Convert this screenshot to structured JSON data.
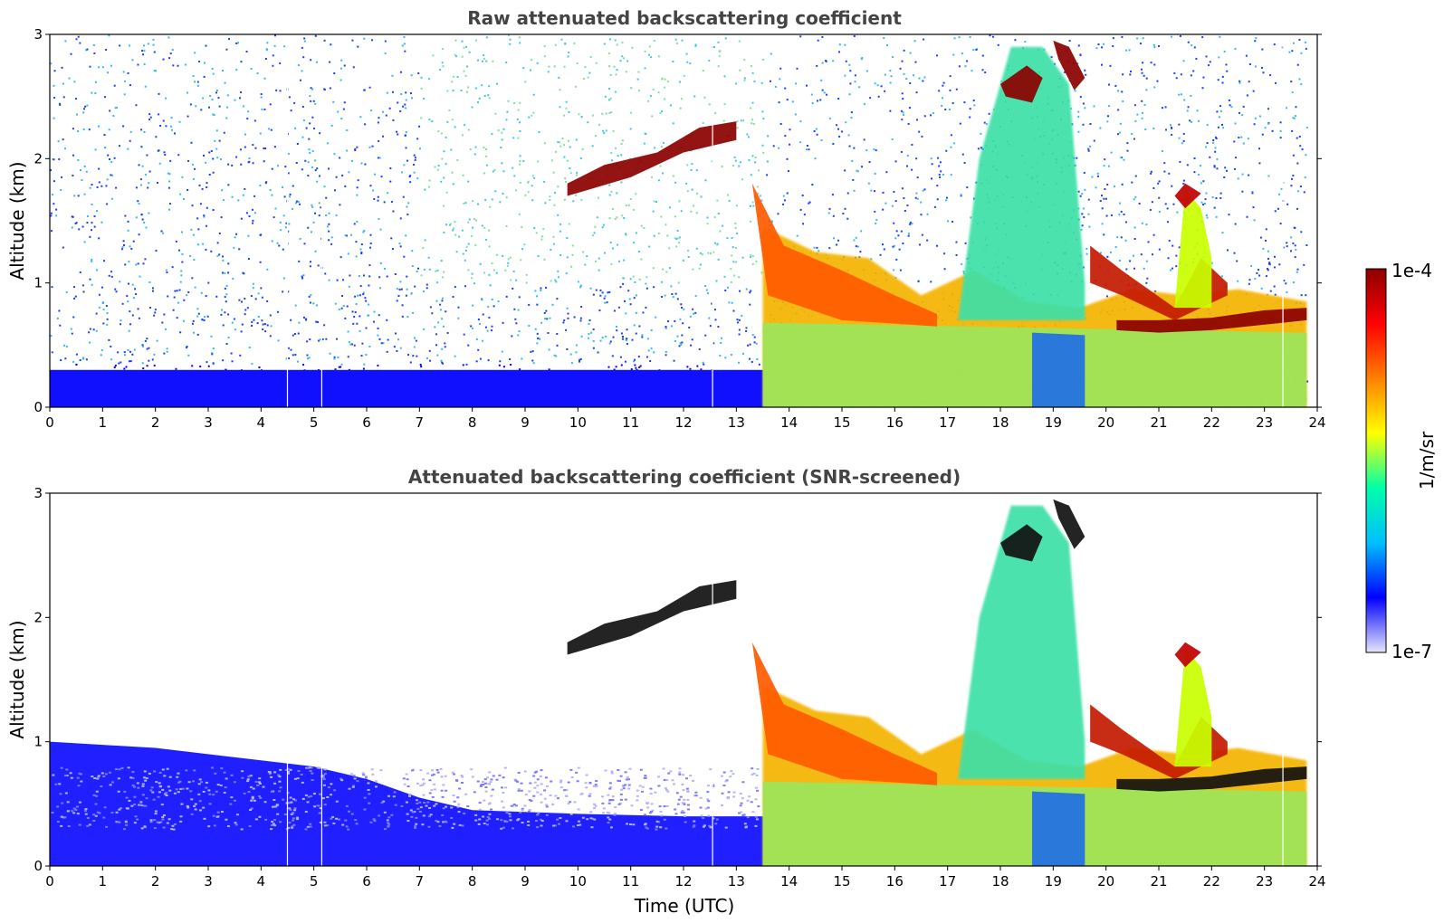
{
  "chart_data": [
    {
      "type": "heatmap",
      "title": "Raw attenuated backscattering coefficient",
      "xlabel": "",
      "ylabel": "Altitude (km)",
      "xlim": [
        0,
        24
      ],
      "ylim": [
        0,
        3
      ],
      "x_ticks": [
        "0",
        "1",
        "2",
        "3",
        "4",
        "5",
        "6",
        "7",
        "8",
        "9",
        "10",
        "11",
        "12",
        "13",
        "14",
        "15",
        "16",
        "17",
        "18",
        "19",
        "20",
        "21",
        "22",
        "23",
        "24"
      ],
      "y_ticks": [
        "0",
        "1",
        "2",
        "3"
      ],
      "screened": false
    },
    {
      "type": "heatmap",
      "title": "Attenuated backscattering coefficient (SNR-screened)",
      "xlabel": "Time (UTC)",
      "ylabel": "Altitude (km)",
      "xlim": [
        0,
        24
      ],
      "ylim": [
        0,
        3
      ],
      "x_ticks": [
        "0",
        "1",
        "2",
        "3",
        "4",
        "5",
        "6",
        "7",
        "8",
        "9",
        "10",
        "11",
        "12",
        "13",
        "14",
        "15",
        "16",
        "17",
        "18",
        "19",
        "20",
        "21",
        "22",
        "23",
        "24"
      ],
      "y_ticks": [
        "0",
        "1",
        "2",
        "3"
      ],
      "screened": true
    }
  ],
  "colorbar": {
    "label": "1/m/sr",
    "max_label": "1e-4",
    "min_label": "1e-7",
    "scale": "log",
    "colormap": [
      "#e6e6fa",
      "#0000ff",
      "#00bfff",
      "#00ffaa",
      "#ffff00",
      "#ff8000",
      "#ff0000",
      "#8b0000"
    ]
  },
  "features": {
    "cirrus_layer": {
      "t_start": 9.8,
      "t_end": 13.0,
      "alt_start_km": 1.8,
      "alt_end_km": 2.3
    },
    "low_cloud_top": {
      "t_start": 13.4,
      "t_end": 23.8,
      "alt_km": 0.7
    },
    "high_clouds": {
      "t_start": 18.0,
      "t_end": 19.6,
      "alt_km": 2.7
    }
  }
}
